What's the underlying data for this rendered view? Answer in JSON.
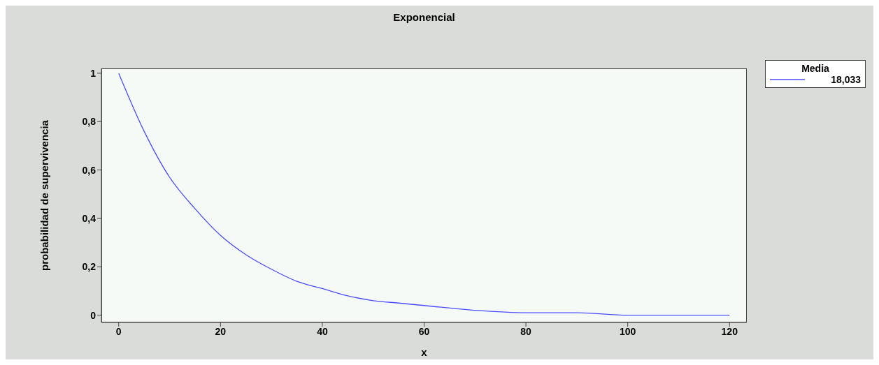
{
  "chart_data": {
    "type": "line",
    "title": "Exponencial",
    "xlabel": "x",
    "ylabel": "probabilidad de supervivencia",
    "legend_title": "Media",
    "legend": "top right",
    "x": [
      0,
      5,
      10,
      15,
      20,
      25,
      30,
      35,
      40,
      45,
      50,
      55,
      60,
      70,
      80,
      90,
      100,
      110,
      120
    ],
    "series": [
      {
        "name": "18,033",
        "color": "#4b4bff",
        "values": [
          1,
          0.76,
          0.57,
          0.44,
          0.33,
          0.25,
          0.19,
          0.14,
          0.11,
          0.08,
          0.06,
          0.05,
          0.04,
          0.02,
          0.01,
          0.01,
          0.0,
          0.0,
          0.0
        ]
      }
    ],
    "xlim": [
      -3.4,
      123.4
    ],
    "xticks": [
      0,
      20,
      40,
      60,
      80,
      100,
      120
    ],
    "ylim": [
      -0.03,
      1.02
    ],
    "yticks": [
      0,
      {
        "value": 0.2,
        "label": "0,2"
      },
      {
        "value": 0.4,
        "label": "0,4"
      },
      {
        "value": 0.6,
        "label": "0,6"
      },
      {
        "value": 0.8,
        "label": "0,8"
      },
      1
    ],
    "marker": "none",
    "line_style": "solid",
    "grid": false
  }
}
